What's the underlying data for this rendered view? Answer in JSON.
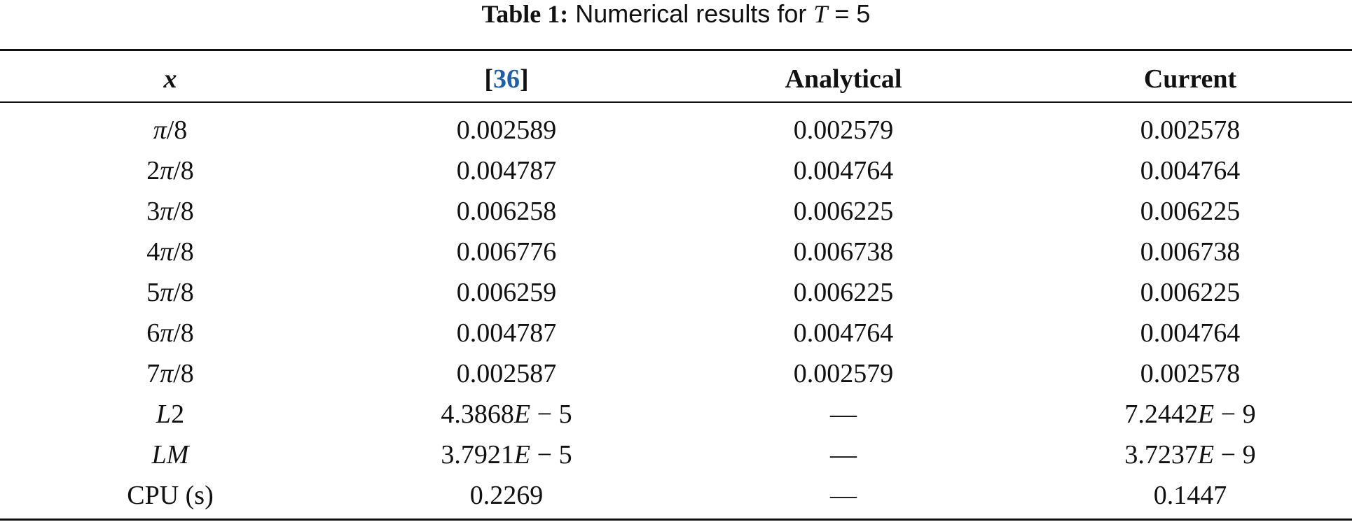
{
  "caption": {
    "label": "Table 1:",
    "text_before": "Numerical results for",
    "variable": "T",
    "text_after": "= 5"
  },
  "table": {
    "header": [
      [
        "x"
      ],
      [
        "[",
        "36",
        "]"
      ],
      [
        "Analytical"
      ],
      [
        "Current"
      ]
    ],
    "rows": [
      [
        "π/8",
        "0.002589",
        "0.002579",
        "0.002578"
      ],
      [
        "2π/8",
        "0.004787",
        "0.004764",
        "0.004764"
      ],
      [
        "3π/8",
        "0.006258",
        "0.006225",
        "0.006225"
      ],
      [
        "4π/8",
        "0.006776",
        "0.006738",
        "0.006738"
      ],
      [
        "5π/8",
        "0.006259",
        "0.006225",
        "0.006225"
      ],
      [
        "6π/8",
        "0.004787",
        "0.004764",
        "0.004764"
      ],
      [
        "7π/8",
        "0.002587",
        "0.002579",
        "0.002578"
      ],
      [
        "L2",
        "4.3868E − 5",
        "—",
        "7.2442E − 9"
      ],
      [
        "LM",
        "3.7921E − 5",
        "—",
        "3.7237E − 9"
      ],
      [
        "CPU (s)",
        "0.2269",
        "—",
        "0.1447"
      ]
    ]
  }
}
